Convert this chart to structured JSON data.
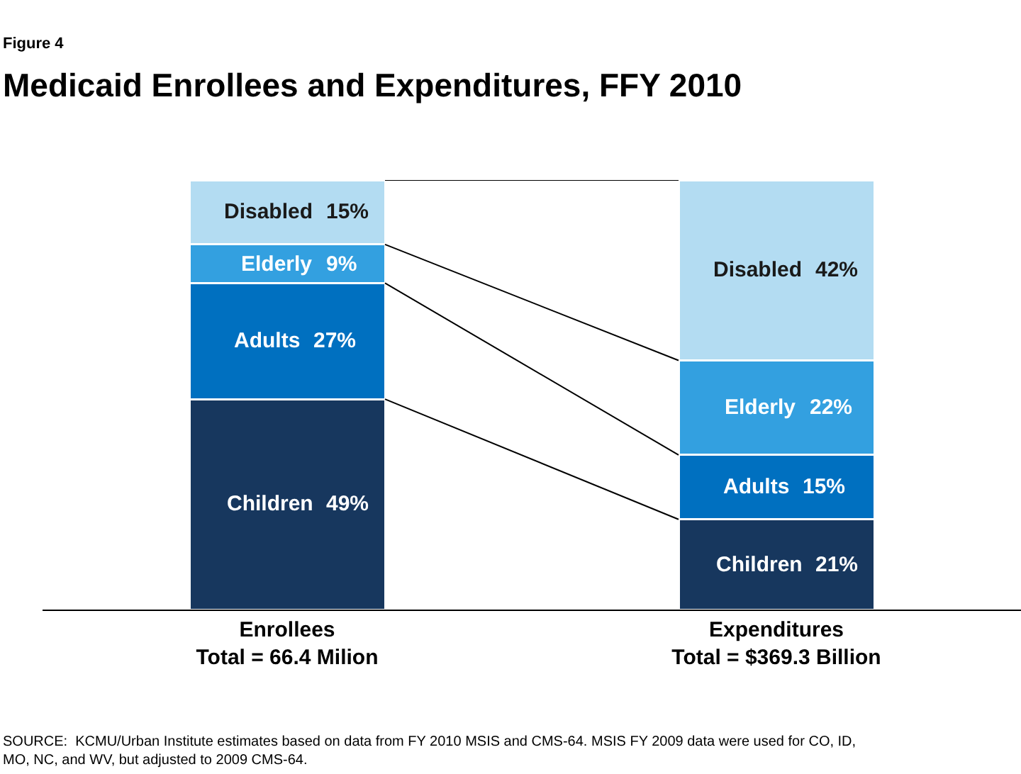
{
  "chart_data": {
    "type": "bar",
    "stacked": true,
    "subtitle": "Figure 4",
    "title": "Medicaid Enrollees and Expenditures, FFY 2010",
    "categories": [
      "Enrollees\nTotal = 66.4 Milion",
      "Expenditures\nTotal = $369.3 Billion"
    ],
    "series": [
      {
        "name": "Children",
        "color": "#17375e",
        "values": [
          49,
          21
        ],
        "value_labels": [
          "49%",
          "21%"
        ]
      },
      {
        "name": "Adults",
        "color": "#0070c0",
        "values": [
          27,
          15
        ],
        "value_labels": [
          "27%",
          "15%"
        ]
      },
      {
        "name": "Elderly",
        "color": "#33a0e0",
        "values": [
          9,
          22
        ],
        "value_labels": [
          "9%",
          "22%"
        ]
      },
      {
        "name": "Disabled",
        "color": "#b3dcf2",
        "values": [
          15,
          42
        ],
        "value_labels": [
          "15%",
          "42%"
        ]
      }
    ],
    "legend": false,
    "annotations": [
      "SOURCE:  KCMU/Urban Institute estimates based on data from FY 2010 MSIS and CMS-64. MSIS FY 2009 data were used for CO, ID,\nMO, NC, and WV, but adjusted to 2009 CMS-64."
    ]
  }
}
